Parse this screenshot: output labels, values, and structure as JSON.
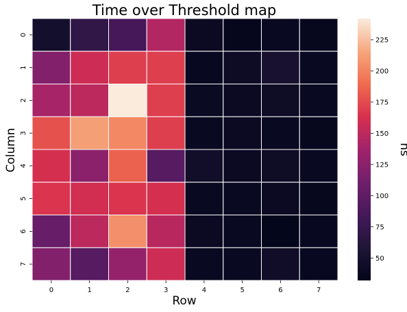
{
  "chart_data": {
    "type": "heatmap",
    "title": "Time over Threshold map",
    "xlabel": "Row",
    "ylabel": "Column",
    "colorbar_label": "ns",
    "x_categories": [
      "0",
      "1",
      "2",
      "3",
      "4",
      "5",
      "6",
      "7"
    ],
    "y_categories": [
      "0",
      "1",
      "2",
      "3",
      "4",
      "5",
      "6",
      "7"
    ],
    "colorbar_range": [
      32,
      242
    ],
    "colorbar_ticks": [
      50,
      75,
      100,
      125,
      150,
      175,
      200,
      225
    ],
    "colormap": "rocket",
    "cell_border_color": "#ffffff",
    "values": [
      [
        48,
        70,
        85,
        145,
        40,
        35,
        38,
        36
      ],
      [
        120,
        158,
        170,
        170,
        37,
        42,
        52,
        38
      ],
      [
        140,
        150,
        242,
        170,
        39,
        40,
        43,
        38
      ],
      [
        178,
        212,
        202,
        170,
        38,
        40,
        38,
        36
      ],
      [
        162,
        125,
        185,
        95,
        46,
        40,
        43,
        38
      ],
      [
        165,
        160,
        165,
        162,
        38,
        38,
        40,
        36
      ],
      [
        105,
        150,
        205,
        148,
        40,
        38,
        33,
        37
      ],
      [
        120,
        95,
        130,
        158,
        38,
        38,
        45,
        37
      ]
    ]
  }
}
